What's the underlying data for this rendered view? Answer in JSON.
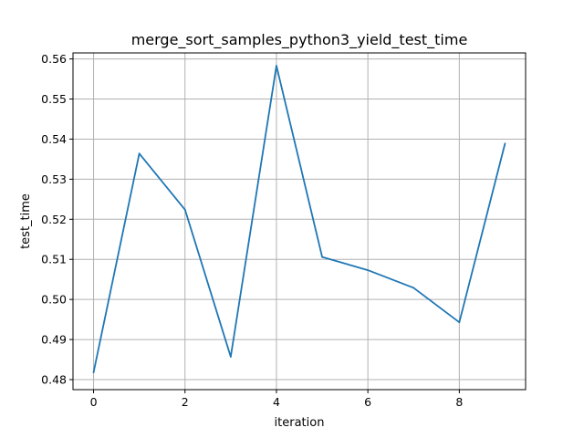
{
  "chart_data": {
    "type": "line",
    "title": "merge_sort_samples_python3_yield_test_time",
    "xlabel": "iteration",
    "ylabel": "test_time",
    "xlim": [
      -0.45,
      9.45
    ],
    "ylim": [
      0.4775,
      0.5615
    ],
    "x_ticks": [
      0,
      2,
      4,
      6,
      8
    ],
    "y_ticks": [
      0.48,
      0.49,
      0.5,
      0.51,
      0.52,
      0.53,
      0.54,
      0.55,
      0.56
    ],
    "x_tick_labels": [
      "0",
      "2",
      "4",
      "6",
      "8"
    ],
    "y_tick_labels": [
      "0.48",
      "0.49",
      "0.50",
      "0.51",
      "0.52",
      "0.53",
      "0.54",
      "0.55",
      "0.56"
    ],
    "grid": true,
    "series": [
      {
        "color": "#1f77b4",
        "x": [
          0,
          1,
          2,
          3,
          4,
          5,
          6,
          7,
          8,
          9
        ],
        "y": [
          0.4818,
          0.5364,
          0.5224,
          0.4857,
          0.5583,
          0.5106,
          0.5073,
          0.5029,
          0.4943,
          0.5389
        ]
      }
    ]
  }
}
